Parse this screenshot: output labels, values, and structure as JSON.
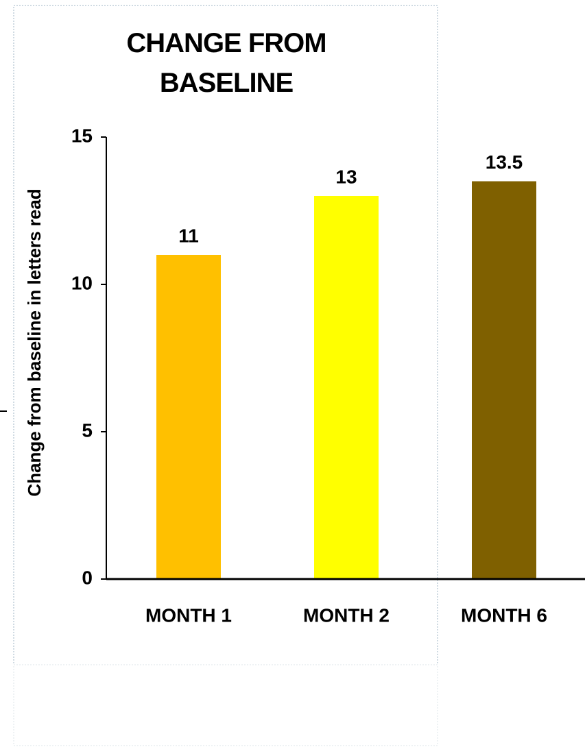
{
  "chart_data": {
    "type": "bar",
    "title": "CHANGE FROM BASELINE",
    "y_label": "Change from baseline in letters read",
    "categories": [
      "MONTH 1",
      "MONTH 2",
      "MONTH 6"
    ],
    "values": [
      11,
      13,
      13.5
    ],
    "colors": [
      "#ffc000",
      "#ffff00",
      "#7f6000"
    ],
    "ylim": [
      0,
      15
    ],
    "yticks": [
      0,
      5,
      10,
      15
    ],
    "grid": false
  }
}
